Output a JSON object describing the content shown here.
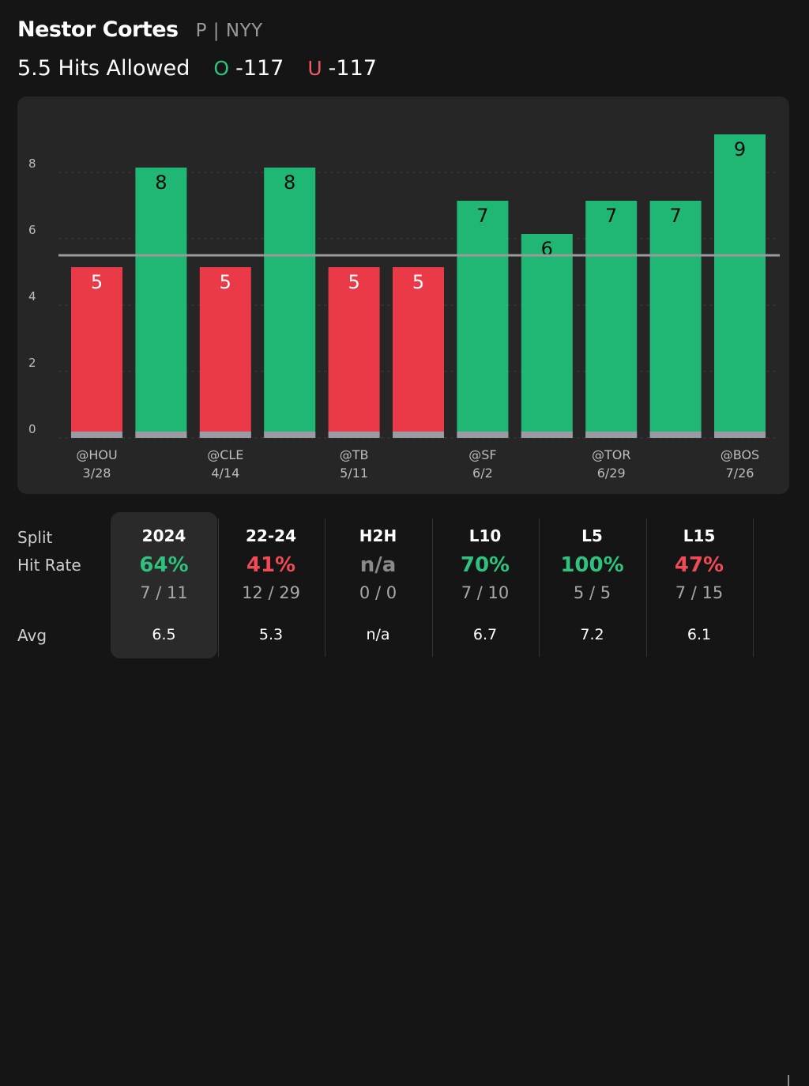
{
  "header": {
    "player_name": "Nestor Cortes",
    "player_meta": "P | NYY",
    "market": "5.5 Hits Allowed",
    "over": {
      "letter": "O",
      "odds": "-117"
    },
    "under": {
      "letter": "U",
      "odds": "-117"
    }
  },
  "colors": {
    "over": "#20b775",
    "under": "#ea3a48",
    "base": "#9b9ba3",
    "line": "#9a9a9a"
  },
  "chart_data": {
    "type": "bar",
    "title": "",
    "xlabel": "",
    "ylabel": "",
    "ylim": [
      0,
      9
    ],
    "line_value": 5.5,
    "y_ticks": [
      "0",
      "2",
      "4",
      "6",
      "8"
    ],
    "y_tick_values": [
      0,
      2,
      4,
      6,
      8
    ],
    "values": [
      5,
      8,
      5,
      8,
      5,
      5,
      7,
      6,
      7,
      7,
      9
    ],
    "x_labels": [
      {
        "index": 0,
        "opponent": "@HOU",
        "date": "3/28"
      },
      {
        "index": 2,
        "opponent": "@CLE",
        "date": "4/14"
      },
      {
        "index": 4,
        "opponent": "@TB",
        "date": "5/11"
      },
      {
        "index": 6,
        "opponent": "@SF",
        "date": "6/2"
      },
      {
        "index": 8,
        "opponent": "@TOR",
        "date": "6/29"
      },
      {
        "index": 10,
        "opponent": "@BOS",
        "date": "7/26"
      }
    ]
  },
  "stats": {
    "split_label": "Split",
    "hit_rate_label": "Hit Rate",
    "avg_label": "Avg",
    "columns": [
      {
        "period": "2024",
        "rate": "64%",
        "status": "green",
        "fraction": "7 / 11",
        "avg": "6.5"
      },
      {
        "period": "22-24",
        "rate": "41%",
        "status": "red",
        "fraction": "12 / 29",
        "avg": "5.3"
      },
      {
        "period": "H2H",
        "rate": "n/a",
        "status": "gray",
        "fraction": "0 / 0",
        "avg": "n/a"
      },
      {
        "period": "L10",
        "rate": "70%",
        "status": "green",
        "fraction": "7 / 10",
        "avg": "6.7"
      },
      {
        "period": "L5",
        "rate": "100%",
        "status": "green",
        "fraction": "5 / 5",
        "avg": "7.2"
      },
      {
        "period": "L15",
        "rate": "47%",
        "status": "red",
        "fraction": "7 / 15",
        "avg": "6.1"
      }
    ]
  }
}
